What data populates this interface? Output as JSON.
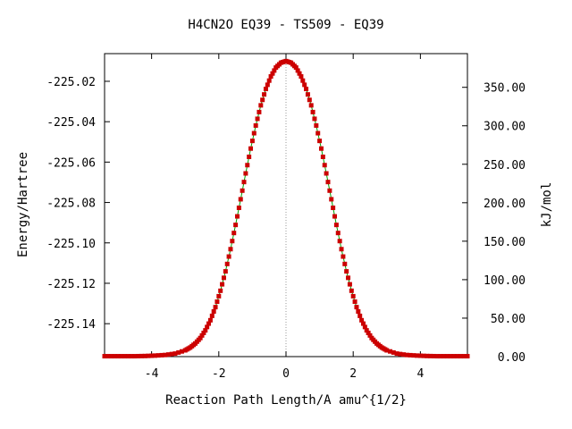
{
  "chart_data": {
    "type": "line",
    "title": "H4CN2O   EQ39 - TS509 - EQ39",
    "xlabel": "Reaction Path Length/A amu^{1/2}",
    "ylabel": "Energy/Hartree",
    "y2label": "kJ/mol",
    "xlim": [
      -5.4,
      5.4
    ],
    "ylim": [
      -225.1563,
      -225.0063
    ],
    "y2lim": [
      0.0,
      393.8
    ],
    "x_ticks": [
      -4,
      -2,
      0,
      2,
      4
    ],
    "x_tick_labels": [
      "-4",
      "-2",
      "0",
      "2",
      "4"
    ],
    "y_ticks": [
      -225.02,
      -225.04,
      -225.06,
      -225.08,
      -225.1,
      -225.12,
      -225.14
    ],
    "y_tick_labels": [
      "-225.02",
      "-225.04",
      "-225.06",
      "-225.08",
      "-225.10",
      "-225.12",
      "-225.14"
    ],
    "y2_ticks": [
      0,
      50,
      100,
      150,
      200,
      250,
      300,
      350
    ],
    "y2_tick_labels": [
      "0.00",
      "50.00",
      "100.00",
      "150.00",
      "200.00",
      "250.00",
      "300.00",
      "350.00"
    ],
    "ts_x": 0,
    "series": [
      {
        "x": [
          -5.4,
          -5.1,
          -4.8,
          -4.5,
          -4.2,
          -3.9,
          -3.6,
          -3.3,
          -3.0,
          -2.85,
          -2.7,
          -2.55,
          -2.4,
          -2.25,
          -2.1,
          -1.95,
          -1.8,
          -1.65,
          -1.5,
          -1.35,
          -1.2,
          -1.05,
          -0.9,
          -0.75,
          -0.6,
          -0.45,
          -0.3,
          -0.15,
          0.0,
          0.15,
          0.3,
          0.45,
          0.6,
          0.75,
          0.9,
          1.05,
          1.2,
          1.35,
          1.5,
          1.65,
          1.8,
          1.95,
          2.1,
          2.25,
          2.4,
          2.55,
          2.7,
          2.85,
          3.0,
          3.3,
          3.6,
          3.9,
          4.2,
          4.5,
          4.8,
          5.1,
          5.4
        ],
        "y": [
          -225.1561,
          -225.1561,
          -225.1561,
          -225.1561,
          -225.156,
          -225.1558,
          -225.1555,
          -225.1548,
          -225.1532,
          -225.1518,
          -225.1498,
          -225.1471,
          -225.1433,
          -225.1383,
          -225.1318,
          -225.1237,
          -225.1141,
          -225.1031,
          -225.0911,
          -225.0784,
          -225.0656,
          -225.0533,
          -225.0419,
          -225.0319,
          -225.0238,
          -225.0176,
          -225.0132,
          -225.0108,
          -225.01,
          -225.0108,
          -225.0132,
          -225.0176,
          -225.0238,
          -225.0319,
          -225.0419,
          -225.0533,
          -225.0656,
          -225.0784,
          -225.0911,
          -225.1031,
          -225.1141,
          -225.1237,
          -225.1318,
          -225.1383,
          -225.1433,
          -225.1471,
          -225.1498,
          -225.1518,
          -225.1532,
          -225.1548,
          -225.1555,
          -225.1558,
          -225.156,
          -225.1561,
          -225.1561,
          -225.1561,
          -225.1561
        ]
      }
    ],
    "colors": {
      "line": "#00a000",
      "marker": "#cc0000",
      "ts_line": "#999999",
      "axis": "#000000"
    },
    "grid": false
  }
}
